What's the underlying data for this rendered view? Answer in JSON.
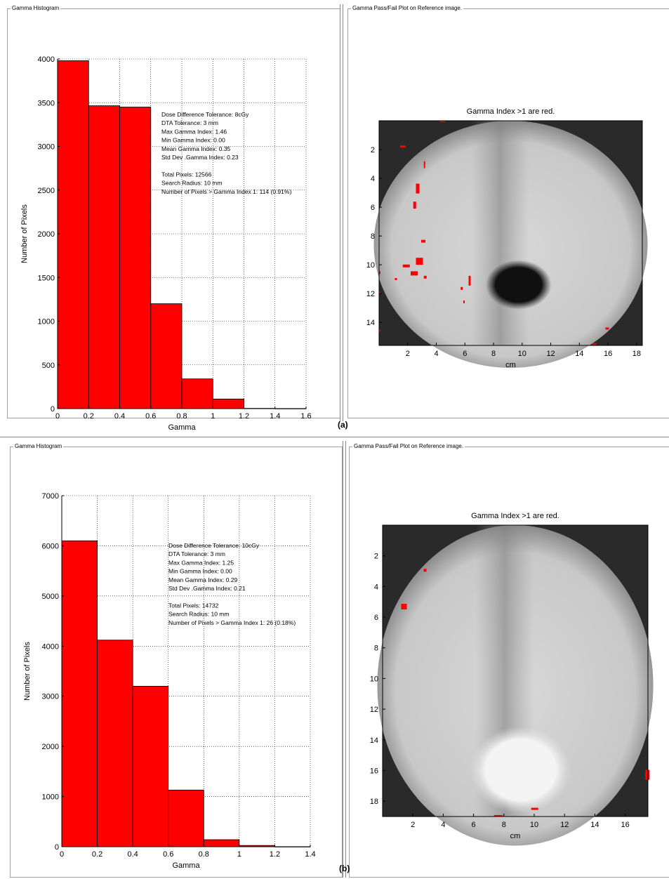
{
  "panels": {
    "a": {
      "label": "(a)",
      "hist_frame_title": "Gamma Histogram",
      "map_frame_title": "Gamma Pass/Fail Plot on Reference image.",
      "map_title": "Gamma Index >1 are red.",
      "map_xlabel": "cm",
      "map_xticks": [
        "2",
        "4",
        "6",
        "8",
        "10",
        "12",
        "14",
        "16",
        "18"
      ],
      "map_yticks": [
        "2",
        "4",
        "6",
        "8",
        "10",
        "12",
        "14"
      ],
      "stats": [
        "Dose Difference Tolerance: 8cGy",
        "DTA Tolerance: 3 mm",
        "Max Gamma Index: 1.46",
        "Min Gamma Index: 0.00",
        "Mean Gamma Index: 0.35",
        "Std Dev .Gamma Index: 0.23",
        "",
        "Total Pixels: 12566",
        "Search Radius: 10 mm",
        "Number of Pixels > Gamma Index 1: 114 (0.91%)"
      ]
    },
    "b": {
      "label": "(b)",
      "hist_frame_title": "Gamma Histogram",
      "map_frame_title": "Gamma Pass/Fail Plot on Reference image.",
      "map_title": "Gamma Index >1 are red.",
      "map_xlabel": "cm",
      "map_xticks": [
        "2",
        "4",
        "6",
        "8",
        "10",
        "12",
        "14",
        "16"
      ],
      "map_yticks": [
        "2",
        "4",
        "6",
        "8",
        "10",
        "12",
        "14",
        "16",
        "18"
      ],
      "stats": [
        "Dose Difference Tolerance: 10cGy",
        "DTA Tolerance: 3 mm",
        "Max Gamma Index: 1.25",
        "Min Gamma Index: 0.00",
        "Mean Gamma Index: 0.29",
        "Std Dev .Gamma Index: 0.21",
        "",
        "Total Pixels: 14732",
        "Search Radius: 10 mm",
        "Number of Pixels > Gamma Index 1: 26 (0.18%)"
      ]
    }
  },
  "colors": {
    "bar": "#ff0000",
    "fail_pixel": "#ff0000",
    "frame": "#a0a0a0"
  },
  "chart_data": [
    {
      "type": "bar",
      "title": "",
      "xlabel": "Gamma",
      "ylabel": "Number of Pixels",
      "bins": [
        [
          0,
          0.2
        ],
        [
          0.2,
          0.4
        ],
        [
          0.4,
          0.6
        ],
        [
          0.6,
          0.8
        ],
        [
          0.8,
          1.0
        ],
        [
          1.0,
          1.2
        ],
        [
          1.2,
          1.4
        ],
        [
          1.4,
          1.6
        ]
      ],
      "values": [
        3980,
        3465,
        3450,
        1200,
        340,
        110,
        3,
        1
      ],
      "xlim": [
        0,
        1.6
      ],
      "ylim": [
        0,
        4000
      ],
      "xticks": [
        "0",
        "0.2",
        "0.4",
        "0.6",
        "0.8",
        "1",
        "1.2",
        "1.4",
        "1.6"
      ],
      "yticks": [
        "0",
        "500",
        "1000",
        "1500",
        "2000",
        "2500",
        "3000",
        "3500",
        "4000"
      ],
      "grid": true
    },
    {
      "type": "bar",
      "title": "",
      "xlabel": "Gamma",
      "ylabel": "Number of Pixels",
      "bins": [
        [
          0,
          0.2
        ],
        [
          0.2,
          0.4
        ],
        [
          0.4,
          0.6
        ],
        [
          0.6,
          0.8
        ],
        [
          0.8,
          1.0
        ],
        [
          1.0,
          1.2
        ],
        [
          1.2,
          1.4
        ]
      ],
      "values": [
        6100,
        4120,
        3200,
        1130,
        140,
        25,
        1
      ],
      "xlim": [
        0,
        1.4
      ],
      "ylim": [
        0,
        7000
      ],
      "xticks": [
        "0",
        "0.2",
        "0.4",
        "0.6",
        "0.8",
        "1",
        "1.2",
        "1.4"
      ],
      "yticks": [
        "0",
        "1000",
        "2000",
        "3000",
        "4000",
        "5000",
        "6000",
        "7000"
      ],
      "grid": true
    }
  ]
}
